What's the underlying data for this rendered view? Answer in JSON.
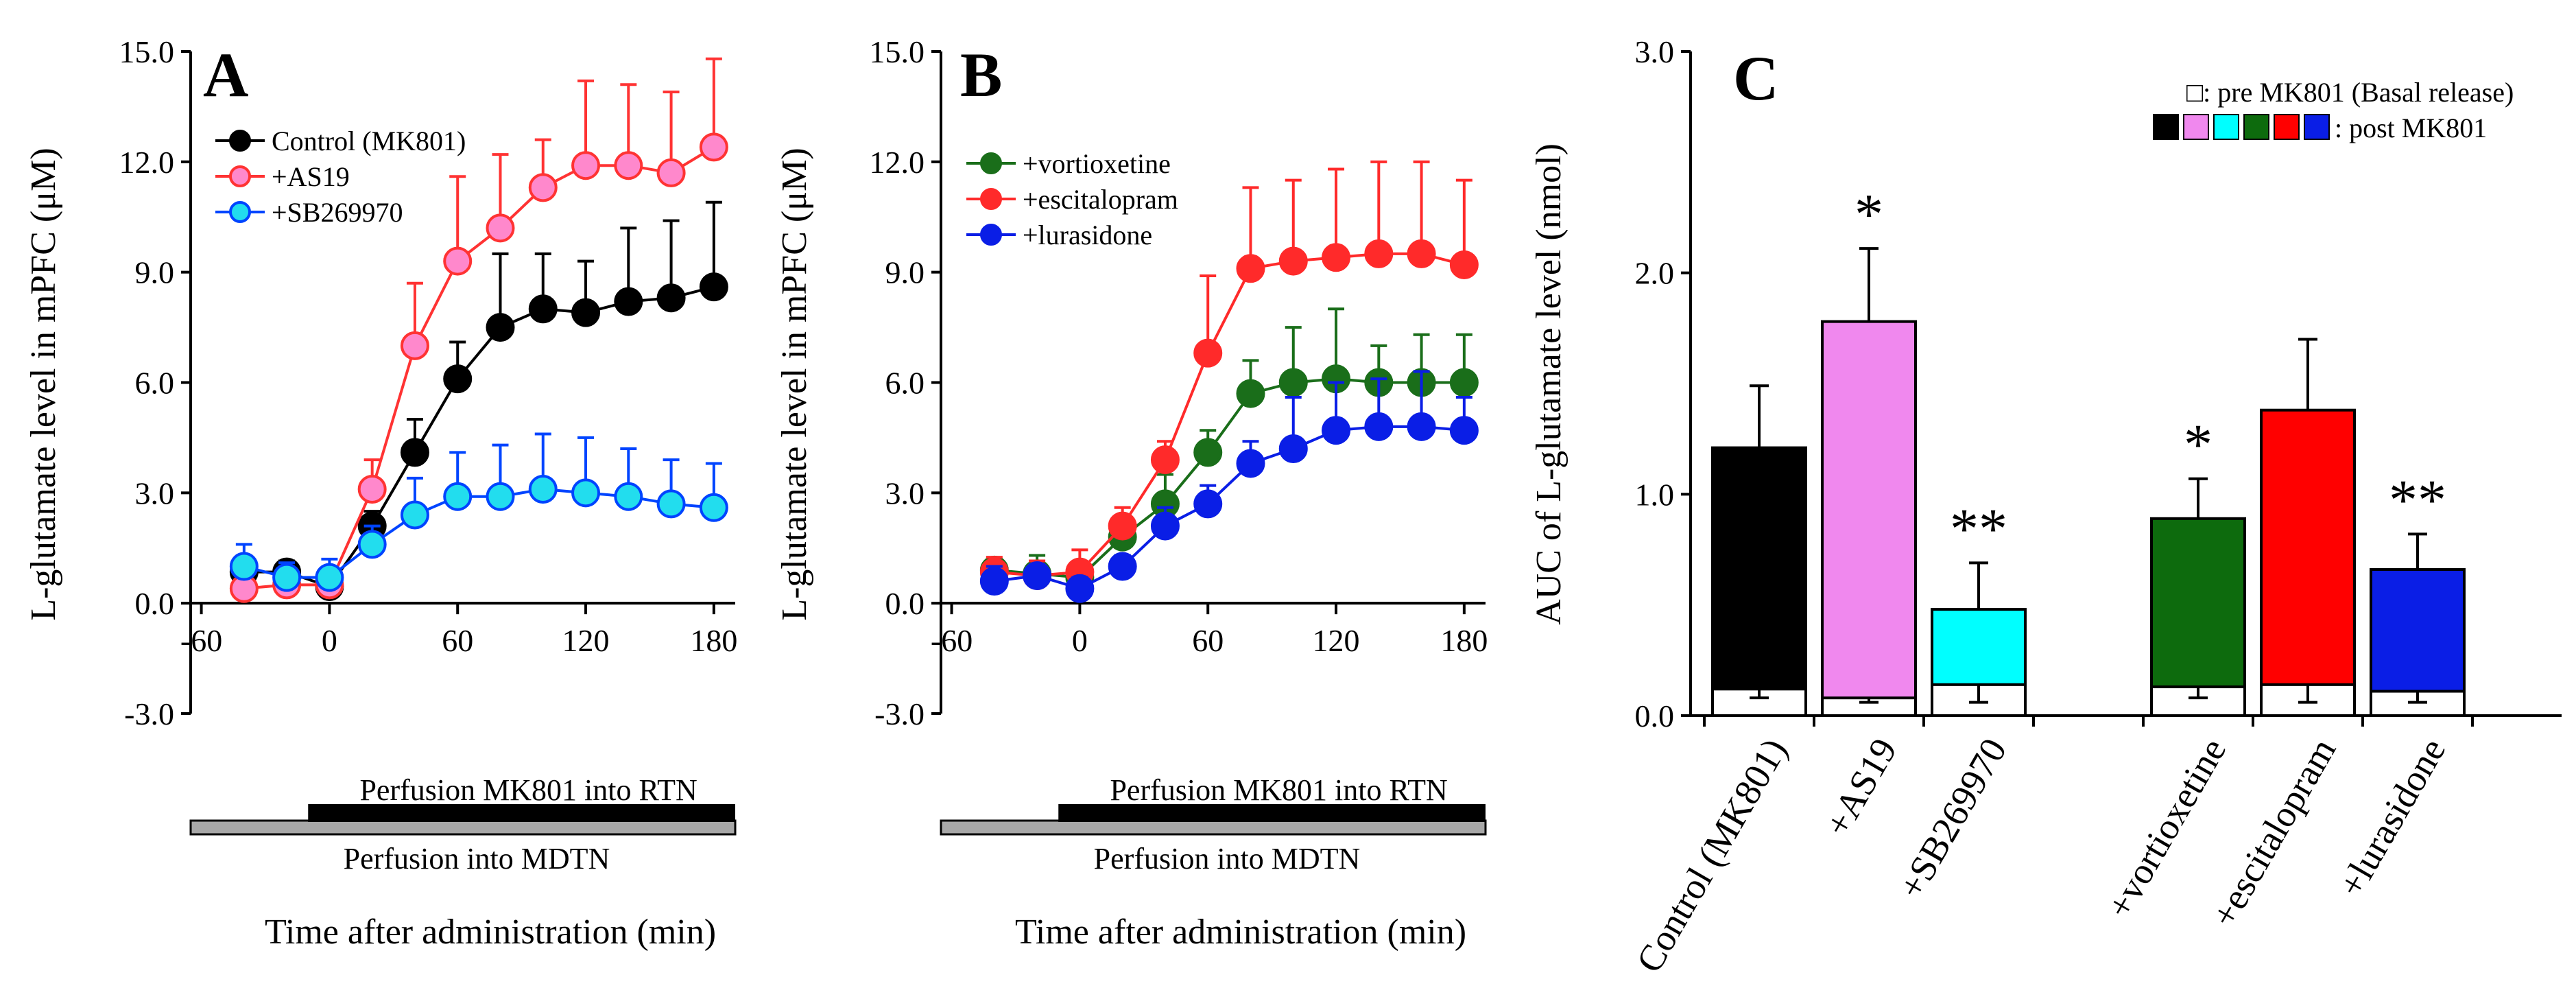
{
  "chart_data": [
    {
      "panel": "A",
      "type": "line",
      "ylabel": "L-glutamate level in mPFC (μM)",
      "xlabel": "Time after administration (min)",
      "y_ticks": [
        "-3.0",
        "0.0",
        "3.0",
        "6.0",
        "9.0",
        "12.0",
        "15.0"
      ],
      "x_ticks": [
        "-60",
        "0",
        "60",
        "120",
        "180"
      ],
      "ylim": [
        -3,
        15
      ],
      "xlim": [
        -65,
        190
      ],
      "x": [
        -40,
        -20,
        0,
        20,
        40,
        60,
        80,
        100,
        120,
        140,
        160,
        180
      ],
      "series": [
        {
          "name": "Control (MK801)",
          "color": "#000000",
          "fill": "#000000",
          "values": [
            0.85,
            0.85,
            0.45,
            2.1,
            4.1,
            6.1,
            7.5,
            8.0,
            7.9,
            8.2,
            8.3,
            8.6
          ],
          "errors": [
            0.3,
            0.3,
            0.2,
            0.4,
            0.9,
            1.0,
            2.0,
            1.5,
            1.4,
            2.0,
            2.1,
            2.3
          ]
        },
        {
          "name": "+AS19",
          "color": "#ff3333",
          "fill": "#ff88cc",
          "values": [
            0.4,
            0.5,
            0.5,
            3.1,
            7.0,
            9.3,
            10.2,
            11.3,
            11.9,
            11.9,
            11.7,
            12.4
          ],
          "errors": [
            0.2,
            0.3,
            0.3,
            0.8,
            1.7,
            2.3,
            2.0,
            1.3,
            2.3,
            2.2,
            2.2,
            2.4
          ]
        },
        {
          "name": "+SB269970",
          "color": "#0044ff",
          "fill": "#22ddee",
          "values": [
            1.0,
            0.7,
            0.7,
            1.6,
            2.4,
            2.9,
            2.9,
            3.1,
            3.0,
            2.9,
            2.7,
            2.6
          ],
          "errors": [
            0.6,
            0.4,
            0.5,
            0.5,
            1.0,
            1.2,
            1.4,
            1.5,
            1.5,
            1.3,
            1.2,
            1.2
          ]
        }
      ],
      "legend": [
        "Control (MK801)",
        "+AS19",
        "+SB269970"
      ],
      "perfusion_top": "Perfusion MK801 into RTN",
      "perfusion_bottom": "Perfusion into MDTN"
    },
    {
      "panel": "B",
      "type": "line",
      "ylabel": "L-glutamate level in mPFC (μM)",
      "xlabel": "Time after administration (min)",
      "y_ticks": [
        "-3.0",
        "0.0",
        "3.0",
        "6.0",
        "9.0",
        "12.0",
        "15.0"
      ],
      "x_ticks": [
        "-60",
        "0",
        "60",
        "120",
        "180"
      ],
      "ylim": [
        -3,
        15
      ],
      "xlim": [
        -65,
        190
      ],
      "x": [
        -40,
        -20,
        0,
        20,
        40,
        60,
        80,
        100,
        120,
        140,
        160,
        180
      ],
      "series": [
        {
          "name": "+vortioxetine",
          "color": "#1a6e1a",
          "fill": "#1a6e1a",
          "values": [
            0.9,
            0.8,
            0.7,
            1.8,
            2.7,
            4.1,
            5.7,
            6.0,
            6.1,
            6.0,
            6.0,
            6.0
          ],
          "errors": [
            0.3,
            0.5,
            0.4,
            0.5,
            0.8,
            0.6,
            0.9,
            1.5,
            1.9,
            1.0,
            1.3,
            1.3
          ]
        },
        {
          "name": "+escitalopram",
          "color": "#ff2a2a",
          "fill": "#ff2a2a",
          "values": [
            0.85,
            0.75,
            0.85,
            2.1,
            3.9,
            6.8,
            9.1,
            9.3,
            9.4,
            9.5,
            9.5,
            9.2
          ],
          "errors": [
            0.4,
            0.4,
            0.6,
            0.5,
            0.5,
            2.1,
            2.2,
            2.2,
            2.4,
            2.5,
            2.5,
            2.3
          ]
        },
        {
          "name": "+lurasidone",
          "color": "#0a1ee6",
          "fill": "#0a1ee6",
          "values": [
            0.6,
            0.75,
            0.4,
            1.0,
            2.1,
            2.7,
            3.8,
            4.2,
            4.7,
            4.8,
            4.8,
            4.7
          ],
          "errors": [
            0.4,
            0.3,
            0.3,
            0.3,
            0.5,
            0.5,
            0.6,
            1.4,
            1.3,
            1.3,
            1.5,
            0.9
          ]
        }
      ],
      "legend": [
        "+vortioxetine",
        "+escitalopram",
        "+lurasidone"
      ],
      "perfusion_top": "Perfusion MK801 into RTN",
      "perfusion_bottom": "Perfusion into MDTN"
    },
    {
      "panel": "C",
      "type": "bar",
      "ylabel": "AUC of L-glutamate level (nmol)",
      "y_ticks": [
        "0.0",
        "1.0",
        "2.0",
        "3.0"
      ],
      "ylim": [
        0,
        3
      ],
      "categories": [
        "Control (MK801)",
        "+AS19",
        "+SB269970",
        "+vortioxetine",
        "+escitalopram",
        "+lurasidone"
      ],
      "slots": [
        0,
        1,
        2,
        4,
        5,
        6
      ],
      "colors": [
        "#000000",
        "#f088ee",
        "#00ffff",
        "#0d6b0d",
        "#ff0000",
        "#0a1ee6"
      ],
      "post_values": [
        1.21,
        1.78,
        0.48,
        0.89,
        1.38,
        0.66
      ],
      "post_errors": [
        0.28,
        0.33,
        0.21,
        0.18,
        0.32,
        0.16
      ],
      "pre_values": [
        0.12,
        0.08,
        0.14,
        0.13,
        0.14,
        0.11
      ],
      "pre_errors": [
        0.04,
        0.02,
        0.08,
        0.05,
        0.08,
        0.05
      ],
      "significance": [
        "",
        "*",
        "**",
        "*",
        "",
        "**"
      ],
      "legend_pre": "□: pre MK801 (Basal release)",
      "legend_post": ": post MK801"
    }
  ]
}
